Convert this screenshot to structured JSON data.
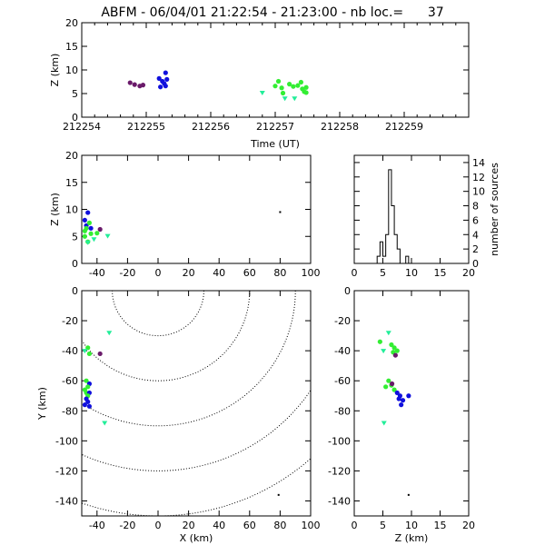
{
  "header": {
    "title": "ABFM - 06/04/01 21:22:54 - 21:23:00 - nb loc.=      37"
  },
  "colors": {
    "purple": "#6a1a6a",
    "blue": "#1010dd",
    "green": "#33ee33",
    "cyan_green": "#22ee99",
    "axis": "#000000"
  },
  "chart_data": [
    {
      "id": "time_height",
      "type": "scatter",
      "xlabel": "Time (UT)",
      "ylabel": "Z (km)",
      "xlim": [
        212254,
        212260
      ],
      "ylim": [
        0,
        20
      ],
      "xticks": [
        "212254",
        "212255",
        "212256",
        "212257",
        "212258",
        "212259"
      ],
      "yticks": [
        "0",
        "5",
        "10",
        "15",
        "20"
      ],
      "points": [
        {
          "x": 212254.75,
          "y": 7.3,
          "c": "purple"
        },
        {
          "x": 212254.82,
          "y": 6.9,
          "c": "purple"
        },
        {
          "x": 212254.9,
          "y": 6.6,
          "c": "purple"
        },
        {
          "x": 212254.95,
          "y": 6.8,
          "c": "purple"
        },
        {
          "x": 212255.2,
          "y": 8.2,
          "c": "blue"
        },
        {
          "x": 212255.25,
          "y": 7.6,
          "c": "blue"
        },
        {
          "x": 212255.3,
          "y": 9.4,
          "c": "blue"
        },
        {
          "x": 212255.32,
          "y": 8.0,
          "c": "blue"
        },
        {
          "x": 212255.22,
          "y": 6.4,
          "c": "blue"
        },
        {
          "x": 212255.3,
          "y": 6.6,
          "c": "blue"
        },
        {
          "x": 212255.28,
          "y": 7.1,
          "c": "blue"
        },
        {
          "x": 212256.8,
          "y": 5.2,
          "c": "cyan_green"
        },
        {
          "x": 212257.0,
          "y": 6.6,
          "c": "green"
        },
        {
          "x": 212257.05,
          "y": 7.6,
          "c": "green"
        },
        {
          "x": 212257.1,
          "y": 6.2,
          "c": "green"
        },
        {
          "x": 212257.12,
          "y": 5.1,
          "c": "green"
        },
        {
          "x": 212257.15,
          "y": 4.0,
          "c": "cyan_green"
        },
        {
          "x": 212257.22,
          "y": 7.0,
          "c": "green"
        },
        {
          "x": 212257.28,
          "y": 6.5,
          "c": "green"
        },
        {
          "x": 212257.3,
          "y": 4.0,
          "c": "cyan_green"
        },
        {
          "x": 212257.35,
          "y": 6.7,
          "c": "green"
        },
        {
          "x": 212257.4,
          "y": 7.4,
          "c": "green"
        },
        {
          "x": 212257.42,
          "y": 6.0,
          "c": "green"
        },
        {
          "x": 212257.45,
          "y": 5.4,
          "c": "green"
        },
        {
          "x": 212257.48,
          "y": 5.2,
          "c": "green"
        },
        {
          "x": 212257.48,
          "y": 6.3,
          "c": "green"
        }
      ]
    },
    {
      "id": "x_height",
      "type": "scatter",
      "xlabel": "",
      "ylabel": "Z (km)",
      "xlim": [
        -50,
        100
      ],
      "ylim": [
        0,
        20
      ],
      "xticks": [
        "-40",
        "-20",
        "0",
        "20",
        "40",
        "60",
        "80",
        "100"
      ],
      "yticks": [
        "0",
        "5",
        "10",
        "15",
        "20"
      ],
      "points": [
        {
          "x": -48,
          "y": 8.0,
          "c": "blue"
        },
        {
          "x": -46,
          "y": 9.4,
          "c": "blue"
        },
        {
          "x": -47,
          "y": 7.0,
          "c": "blue"
        },
        {
          "x": -44,
          "y": 6.5,
          "c": "blue"
        },
        {
          "x": -48,
          "y": 5.0,
          "c": "green"
        },
        {
          "x": -47,
          "y": 6.5,
          "c": "green"
        },
        {
          "x": -45,
          "y": 7.5,
          "c": "green"
        },
        {
          "x": -46,
          "y": 4.0,
          "c": "green"
        },
        {
          "x": -44,
          "y": 5.5,
          "c": "green"
        },
        {
          "x": -48,
          "y": 6.0,
          "c": "green"
        },
        {
          "x": -42,
          "y": 4.5,
          "c": "cyan_green"
        },
        {
          "x": -38,
          "y": 6.3,
          "c": "purple"
        },
        {
          "x": -40,
          "y": 5.6,
          "c": "green"
        },
        {
          "x": -33,
          "y": 5.1,
          "c": "cyan_green"
        },
        {
          "x": -46,
          "y": 3.9,
          "c": "cyan_green"
        },
        {
          "x": 80,
          "y": 9.5,
          "c": "axis"
        }
      ]
    },
    {
      "id": "height_histogram",
      "type": "bar",
      "xlabel": "",
      "ylabel": "number of sources",
      "xlim": [
        0,
        20
      ],
      "ylim": [
        0,
        15
      ],
      "xticks": [
        "0",
        "5",
        "10",
        "15",
        "20"
      ],
      "yticks": [
        "0",
        "2",
        "4",
        "6",
        "8",
        "10",
        "12",
        "14"
      ],
      "bin_width": 0.5,
      "bins": [
        {
          "x": 4.0,
          "v": 1
        },
        {
          "x": 4.5,
          "v": 3
        },
        {
          "x": 5.0,
          "v": 1
        },
        {
          "x": 5.5,
          "v": 4
        },
        {
          "x": 6.0,
          "v": 13
        },
        {
          "x": 6.5,
          "v": 8
        },
        {
          "x": 7.0,
          "v": 4
        },
        {
          "x": 7.5,
          "v": 2
        },
        {
          "x": 8.0,
          "v": 0
        },
        {
          "x": 8.5,
          "v": 0
        },
        {
          "x": 9.0,
          "v": 1
        },
        {
          "x": 9.5,
          "v": 0
        }
      ]
    },
    {
      "id": "plan_view",
      "type": "scatter",
      "xlabel": "X (km)",
      "ylabel": "Y (km)",
      "xlim": [
        -50,
        100
      ],
      "ylim": [
        -150,
        0
      ],
      "xticks": [
        "-40",
        "-20",
        "0",
        "20",
        "40",
        "60",
        "80",
        "100"
      ],
      "yticks": [
        "-140",
        "-120",
        "-100",
        "-80",
        "-60",
        "-40",
        "-20",
        "0"
      ],
      "range_rings_km": [
        30,
        60,
        90,
        120,
        150
      ],
      "ring_center": [
        0,
        0
      ],
      "points": [
        {
          "x": -46,
          "y": -38,
          "c": "green"
        },
        {
          "x": -48,
          "y": -40,
          "c": "cyan_green"
        },
        {
          "x": -45,
          "y": -42,
          "c": "green"
        },
        {
          "x": -32,
          "y": -28,
          "c": "cyan_green"
        },
        {
          "x": -38,
          "y": -42,
          "c": "purple"
        },
        {
          "x": -47,
          "y": -60,
          "c": "green"
        },
        {
          "x": -45,
          "y": -62,
          "c": "blue"
        },
        {
          "x": -46,
          "y": -64,
          "c": "green"
        },
        {
          "x": -48,
          "y": -66,
          "c": "green"
        },
        {
          "x": -47,
          "y": -68,
          "c": "green"
        },
        {
          "x": -45,
          "y": -68,
          "c": "blue"
        },
        {
          "x": -46,
          "y": -70,
          "c": "green"
        },
        {
          "x": -47,
          "y": -72,
          "c": "blue"
        },
        {
          "x": -46,
          "y": -74,
          "c": "blue"
        },
        {
          "x": -48,
          "y": -76,
          "c": "blue"
        },
        {
          "x": -45,
          "y": -77,
          "c": "blue"
        },
        {
          "x": -35,
          "y": -88,
          "c": "cyan_green"
        },
        {
          "x": 79,
          "y": -136,
          "c": "axis"
        }
      ]
    },
    {
      "id": "height_y",
      "type": "scatter",
      "xlabel": "Z (km)",
      "ylabel": "",
      "xlim": [
        0,
        20
      ],
      "ylim": [
        -150,
        0
      ],
      "xticks": [
        "0",
        "5",
        "10",
        "15",
        "20"
      ],
      "yticks": [
        "-140",
        "-120",
        "-100",
        "-80",
        "-60",
        "-40",
        "-20",
        "0"
      ],
      "points": [
        {
          "x": 6.0,
          "y": -28,
          "c": "cyan_green"
        },
        {
          "x": 4.5,
          "y": -34,
          "c": "green"
        },
        {
          "x": 5.1,
          "y": -40,
          "c": "cyan_green"
        },
        {
          "x": 6.5,
          "y": -36,
          "c": "green"
        },
        {
          "x": 7.0,
          "y": -38,
          "c": "green"
        },
        {
          "x": 6.8,
          "y": -41,
          "c": "green"
        },
        {
          "x": 7.2,
          "y": -43,
          "c": "purple"
        },
        {
          "x": 7.5,
          "y": -40,
          "c": "green"
        },
        {
          "x": 5.5,
          "y": -64,
          "c": "green"
        },
        {
          "x": 6.0,
          "y": -60,
          "c": "green"
        },
        {
          "x": 6.5,
          "y": -63,
          "c": "green"
        },
        {
          "x": 7.0,
          "y": -66,
          "c": "green"
        },
        {
          "x": 7.5,
          "y": -68,
          "c": "blue"
        },
        {
          "x": 6.6,
          "y": -62,
          "c": "purple"
        },
        {
          "x": 8.0,
          "y": -70,
          "c": "blue"
        },
        {
          "x": 8.5,
          "y": -73,
          "c": "blue"
        },
        {
          "x": 8.2,
          "y": -76,
          "c": "blue"
        },
        {
          "x": 9.5,
          "y": -70,
          "c": "blue"
        },
        {
          "x": 7.8,
          "y": -72,
          "c": "blue"
        },
        {
          "x": 5.2,
          "y": -88,
          "c": "cyan_green"
        },
        {
          "x": 9.5,
          "y": -136,
          "c": "axis"
        }
      ]
    }
  ]
}
